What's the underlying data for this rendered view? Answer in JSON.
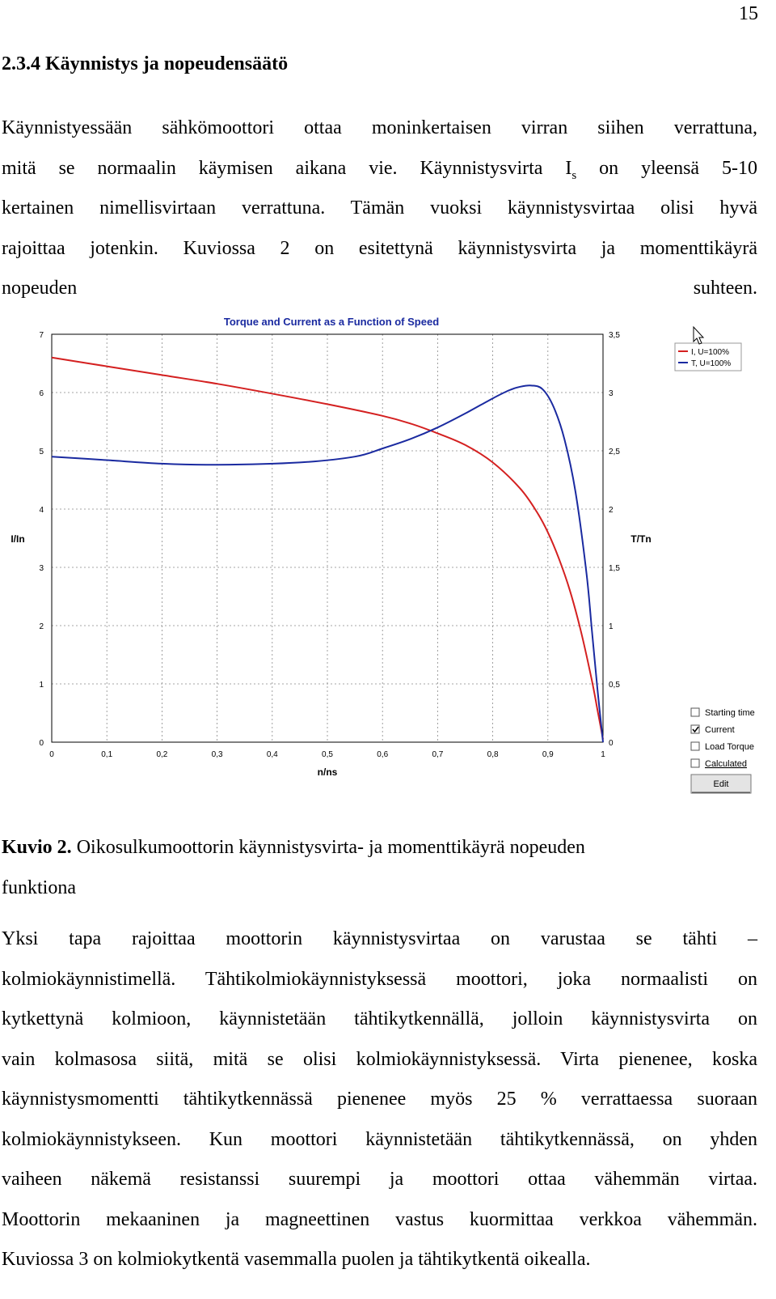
{
  "page_number": "15",
  "section_heading": "2.3.4 Käynnistys ja nopeudensäätö",
  "para1": {
    "l1": "Käynnistyessään sähkömoottori ottaa moninkertaisen virran siihen verrattuna,",
    "l2a": "mitä se normaalin käymisen aikana vie. Käynnistysvirta I",
    "l2sub": "s",
    "l2b": " on yleensä 5-10",
    "l3": "kertainen nimellisvirtaan verrattuna. Tämän vuoksi käynnistysvirtaa olisi hyvä",
    "l4": "rajoittaa jotenkin. Kuviossa 2 on esitettynä käynnistysvirta ja momenttikäyrä",
    "l5a": "nopeuden",
    "l5b": "suhteen."
  },
  "caption": {
    "label": "Kuvio 2.",
    "text": " Oikosulkumoottorin käynnistysvirta- ja momenttikäyrä nopeuden",
    "text2": "funktiona"
  },
  "para2": {
    "l1": "Yksi tapa rajoittaa moottorin käynnistysvirtaa on varustaa se tähti –",
    "l2": "kolmiokäynnistimellä. Tähtikolmiokäynnistyksessä moottori, joka normaalisti on",
    "l3": "kytkettynä kolmioon, käynnistetään tähtikytkennällä, jolloin käynnistysvirta on",
    "l4": "vain kolmasosa siitä, mitä se olisi kolmiokäynnistyksessä. Virta pienenee, koska",
    "l5": "käynnistysmomentti tähtikytkennässä pienenee myös 25 % verrattaessa suoraan",
    "l6": "kolmiokäynnistykseen. Kun moottori käynnistetään tähtikytkennässä, on yhden",
    "l7": "vaiheen näkemä resistanssi suurempi ja moottori ottaa vähemmän virtaa.",
    "l8": "Moottorin mekaaninen ja magneettinen vastus kuormittaa verkkoa vähemmän.",
    "l9": "Kuviossa 3 on kolmiokytkentä vasemmalla puolen ja tähtikytkentä oikealla."
  },
  "chart_controls": {
    "checkboxes": [
      {
        "label": "Starting time",
        "checked": false
      },
      {
        "label": "Current",
        "checked": true
      },
      {
        "label": "Load Torque",
        "checked": false
      },
      {
        "label": "Calculated",
        "checked": false
      }
    ],
    "edit_button": "Edit"
  },
  "chart_data": {
    "type": "line",
    "title": "Torque and Current as a Function of Speed",
    "xlabel": "n/ns",
    "ylabel_left": "I/In",
    "ylabel_right": "T/Tn",
    "xlim": [
      0,
      1
    ],
    "ylim_left": [
      0,
      7
    ],
    "ylim_right": [
      0,
      3.5
    ],
    "x_ticks": [
      "0",
      "0,1",
      "0,2",
      "0,3",
      "0,4",
      "0,5",
      "0,6",
      "0,7",
      "0,8",
      "0,9",
      "1"
    ],
    "y_left_ticks": [
      "0",
      "1",
      "2",
      "3",
      "4",
      "5",
      "6",
      "7"
    ],
    "y_right_ticks": [
      "0",
      "0,5",
      "1",
      "1,5",
      "2",
      "2,5",
      "3",
      "3,5"
    ],
    "grid": true,
    "legend_position": "top-right",
    "series": [
      {
        "name": "I, U=100%",
        "axis": "left",
        "color": "#d42020",
        "x": [
          0,
          0.1,
          0.2,
          0.3,
          0.4,
          0.5,
          0.6,
          0.65,
          0.7,
          0.75,
          0.8,
          0.85,
          0.88,
          0.9,
          0.92,
          0.94,
          0.96,
          0.98,
          0.99,
          1.0
        ],
        "y": [
          6.6,
          6.45,
          6.3,
          6.15,
          5.98,
          5.8,
          5.6,
          5.47,
          5.3,
          5.1,
          4.8,
          4.35,
          3.95,
          3.6,
          3.15,
          2.6,
          1.9,
          1.05,
          0.55,
          0.05
        ]
      },
      {
        "name": "T, U=100%",
        "axis": "right",
        "color": "#1a2aa0",
        "x": [
          0,
          0.1,
          0.2,
          0.3,
          0.45,
          0.55,
          0.6,
          0.65,
          0.7,
          0.75,
          0.8,
          0.83,
          0.85,
          0.87,
          0.89,
          0.91,
          0.93,
          0.95,
          0.97,
          0.98,
          0.99,
          1.0
        ],
        "y": [
          2.45,
          2.42,
          2.39,
          2.38,
          2.4,
          2.45,
          2.52,
          2.6,
          2.7,
          2.82,
          2.95,
          3.02,
          3.05,
          3.06,
          3.03,
          2.88,
          2.6,
          2.15,
          1.45,
          0.95,
          0.45,
          0.0
        ]
      }
    ]
  }
}
